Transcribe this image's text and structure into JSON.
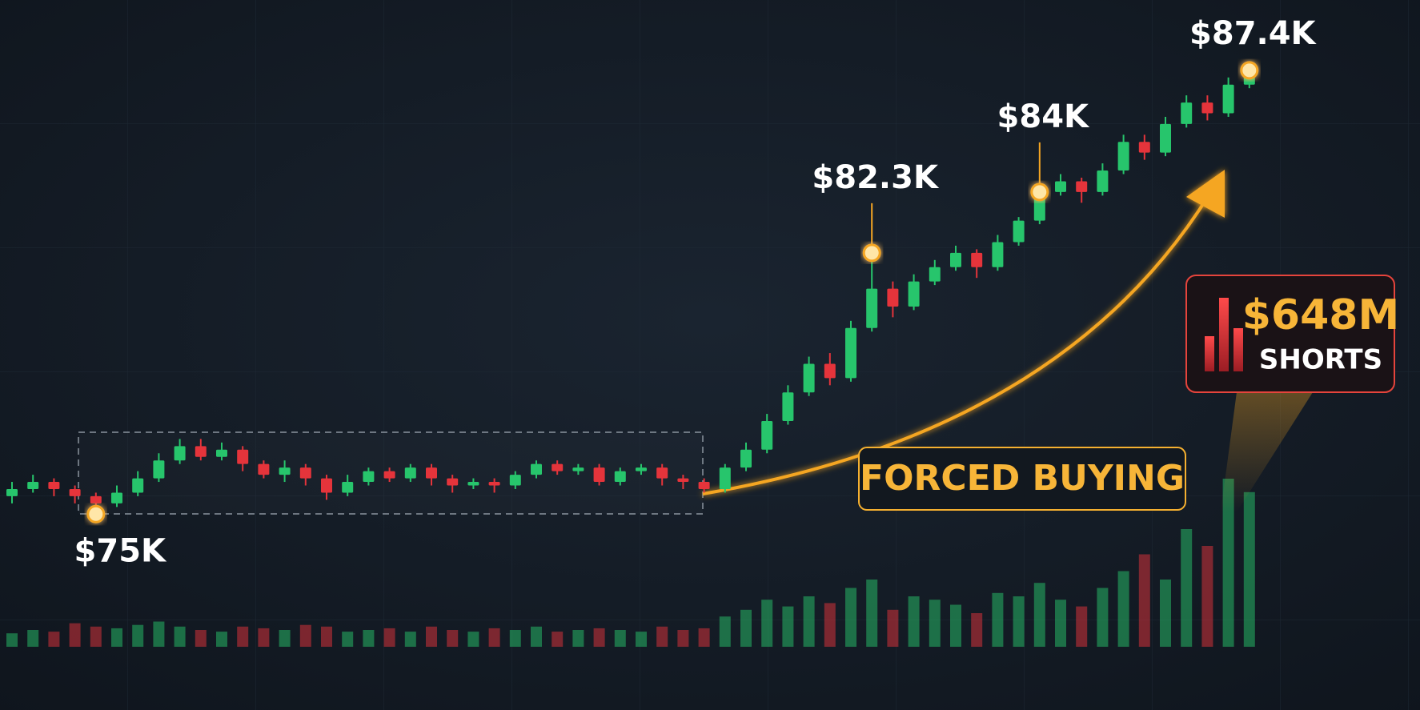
{
  "chart_data": {
    "type": "candlestick",
    "open": [
      75.5,
      75.7,
      75.9,
      75.7,
      75.5,
      75.3,
      75.6,
      76.0,
      76.5,
      76.9,
      76.6,
      76.8,
      76.4,
      76.1,
      76.3,
      76.0,
      75.6,
      75.9,
      76.2,
      76.0,
      76.3,
      76.0,
      75.8,
      75.9,
      75.8,
      76.1,
      76.4,
      76.2,
      76.3,
      75.9,
      76.2,
      76.3,
      76.0,
      75.9,
      75.7,
      76.3,
      76.8,
      77.6,
      78.4,
      79.2,
      78.8,
      80.2,
      81.3,
      80.8,
      81.5,
      81.9,
      82.3,
      81.9,
      82.6,
      83.2,
      84.0,
      84.3,
      84.0,
      84.6,
      85.4,
      85.1,
      85.9,
      86.5,
      86.2,
      87.0
    ],
    "high": [
      75.9,
      76.1,
      76.0,
      75.8,
      75.6,
      75.8,
      76.2,
      76.7,
      77.1,
      77.1,
      77.0,
      76.9,
      76.5,
      76.5,
      76.4,
      76.1,
      76.1,
      76.3,
      76.3,
      76.4,
      76.4,
      76.1,
      76.0,
      76.0,
      76.2,
      76.5,
      76.5,
      76.4,
      76.4,
      76.3,
      76.4,
      76.4,
      76.1,
      76.0,
      76.4,
      77.0,
      77.8,
      78.6,
      79.4,
      79.5,
      80.4,
      82.3,
      81.5,
      81.7,
      82.1,
      82.5,
      82.4,
      82.8,
      83.3,
      84.1,
      84.5,
      84.4,
      84.8,
      85.6,
      85.6,
      86.1,
      86.7,
      86.7,
      87.2,
      87.4
    ],
    "low": [
      75.3,
      75.6,
      75.5,
      75.3,
      75.0,
      75.2,
      75.5,
      75.9,
      76.4,
      76.5,
      76.5,
      76.2,
      76.0,
      75.9,
      75.8,
      75.4,
      75.5,
      75.8,
      75.9,
      75.9,
      75.8,
      75.6,
      75.7,
      75.6,
      75.7,
      76.0,
      76.1,
      76.1,
      75.8,
      75.8,
      76.1,
      75.8,
      75.7,
      75.6,
      75.6,
      76.2,
      76.7,
      77.5,
      78.3,
      78.6,
      78.7,
      80.1,
      80.5,
      80.7,
      81.4,
      81.8,
      81.6,
      81.8,
      82.5,
      83.1,
      83.9,
      83.7,
      83.9,
      84.5,
      84.9,
      85.0,
      85.8,
      86.0,
      86.1,
      86.9
    ],
    "close": [
      75.7,
      75.9,
      75.7,
      75.5,
      75.3,
      75.6,
      76.0,
      76.5,
      76.9,
      76.6,
      76.8,
      76.4,
      76.1,
      76.3,
      76.0,
      75.6,
      75.9,
      76.2,
      76.0,
      76.3,
      76.0,
      75.8,
      75.9,
      75.8,
      76.1,
      76.4,
      76.2,
      76.3,
      75.9,
      76.2,
      76.3,
      76.0,
      75.9,
      75.7,
      76.3,
      76.8,
      77.6,
      78.4,
      79.2,
      78.8,
      80.2,
      81.3,
      80.8,
      81.5,
      81.9,
      82.3,
      81.9,
      82.6,
      83.2,
      84.0,
      84.3,
      84.0,
      84.6,
      85.4,
      85.1,
      85.9,
      86.5,
      86.2,
      87.0,
      87.3
    ],
    "volume": [
      8,
      10,
      9,
      14,
      12,
      11,
      13,
      15,
      12,
      10,
      9,
      12,
      11,
      10,
      13,
      12,
      9,
      10,
      11,
      9,
      12,
      10,
      9,
      11,
      10,
      12,
      9,
      10,
      11,
      10,
      9,
      12,
      10,
      11,
      18,
      22,
      28,
      24,
      30,
      26,
      35,
      40,
      22,
      30,
      28,
      25,
      20,
      32,
      30,
      38,
      28,
      24,
      35,
      45,
      55,
      40,
      70,
      60,
      100,
      92
    ],
    "ylim": [
      74,
      88
    ],
    "volume_lim": [
      0,
      100
    ],
    "up_color": "#27c56c",
    "down_color": "#e5343b",
    "annotations": [
      {
        "x": 4,
        "value": 75,
        "label": "$75K"
      },
      {
        "x": 41,
        "value": 82.3,
        "label": "$82.3K"
      },
      {
        "x": 49,
        "value": 84,
        "label": "$84K"
      },
      {
        "x": 59,
        "value": 87.4,
        "label": "$87.4K"
      }
    ],
    "callout": "FORCED BUYING",
    "shorts": {
      "label": "$648M",
      "caption": "SHORTS"
    }
  }
}
